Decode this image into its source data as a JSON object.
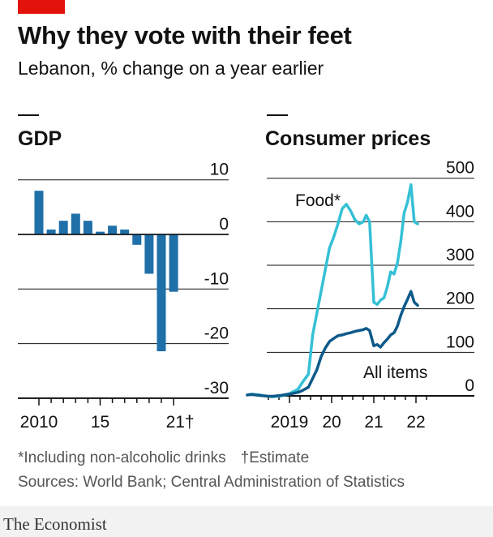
{
  "header": {
    "title": "Why they vote with their feet",
    "subtitle": "Lebanon, % change on a year earlier"
  },
  "colors": {
    "red_tag": "#e3120b",
    "gdp_bar": "#1f6fa9",
    "food_line": "#35c0d6",
    "all_items_line": "#0e5a8a",
    "grid": "#121212",
    "text": "#121212",
    "footnote": "#555555"
  },
  "chart_data": [
    {
      "type": "bar",
      "title": "GDP",
      "x": [
        2009,
        2010,
        2011,
        2012,
        2013,
        2014,
        2015,
        2016,
        2017,
        2018,
        2019,
        2020,
        2021
      ],
      "values": [
        null,
        8.0,
        0.9,
        2.5,
        3.8,
        2.5,
        0.5,
        1.6,
        0.9,
        -1.9,
        -7.2,
        -21.4,
        -10.5
      ],
      "ylim": [
        -30,
        10
      ],
      "y_ticks": [
        10,
        0,
        -10,
        -20,
        -30
      ],
      "y_tick_labels": [
        "10",
        "0",
        "-10",
        "-20",
        "-30"
      ],
      "x_tick_labels": [
        {
          "x": 2010,
          "label": "2010"
        },
        {
          "x": 2015,
          "label": "15"
        },
        {
          "x": 2021,
          "label": "21†"
        }
      ],
      "grid": true
    },
    {
      "type": "line",
      "title": "Consumer prices",
      "ylim": [
        0,
        500
      ],
      "y_ticks": [
        0,
        100,
        200,
        300,
        400,
        500
      ],
      "y_tick_labels": [
        "0",
        "100",
        "200",
        "300",
        "400",
        "500"
      ],
      "x_tick_labels": [
        {
          "x": 2019,
          "label": "2019"
        },
        {
          "x": 2020,
          "label": "20"
        },
        {
          "x": 2021,
          "label": "21"
        },
        {
          "x": 2022,
          "label": "22"
        }
      ],
      "grid": true,
      "series": [
        {
          "name": "Food*",
          "points": [
            [
              2018.0,
              2
            ],
            [
              2018.1,
              4
            ],
            [
              2018.2,
              3
            ],
            [
              2018.3,
              2
            ],
            [
              2018.4,
              0
            ],
            [
              2018.5,
              -1
            ],
            [
              2018.6,
              -2
            ],
            [
              2018.7,
              -1
            ],
            [
              2018.8,
              0
            ],
            [
              2018.9,
              2
            ],
            [
              2019.0,
              5
            ],
            [
              2019.1,
              10
            ],
            [
              2019.2,
              15
            ],
            [
              2019.3,
              30
            ],
            [
              2019.45,
              50
            ],
            [
              2019.55,
              140
            ],
            [
              2019.65,
              190
            ],
            [
              2019.75,
              240
            ],
            [
              2019.85,
              290
            ],
            [
              2019.95,
              340
            ],
            [
              2020.05,
              365
            ],
            [
              2020.15,
              395
            ],
            [
              2020.25,
              430
            ],
            [
              2020.35,
              440
            ],
            [
              2020.45,
              425
            ],
            [
              2020.55,
              405
            ],
            [
              2020.65,
              395
            ],
            [
              2020.75,
              400
            ],
            [
              2020.82,
              415
            ],
            [
              2020.9,
              400
            ],
            [
              2021.0,
              215
            ],
            [
              2021.08,
              210
            ],
            [
              2021.16,
              220
            ],
            [
              2021.24,
              225
            ],
            [
              2021.32,
              250
            ],
            [
              2021.4,
              285
            ],
            [
              2021.48,
              280
            ],
            [
              2021.56,
              305
            ],
            [
              2021.64,
              355
            ],
            [
              2021.72,
              420
            ],
            [
              2021.8,
              445
            ],
            [
              2021.88,
              485
            ],
            [
              2021.96,
              400
            ],
            [
              2022.04,
              395
            ]
          ]
        },
        {
          "name": "All items",
          "points": [
            [
              2018.0,
              2
            ],
            [
              2018.1,
              3
            ],
            [
              2018.2,
              2
            ],
            [
              2018.3,
              1
            ],
            [
              2018.4,
              0
            ],
            [
              2018.5,
              -1
            ],
            [
              2018.6,
              -1
            ],
            [
              2018.7,
              0
            ],
            [
              2018.8,
              1
            ],
            [
              2018.9,
              3
            ],
            [
              2019.0,
              4
            ],
            [
              2019.1,
              6
            ],
            [
              2019.2,
              8
            ],
            [
              2019.3,
              12
            ],
            [
              2019.45,
              20
            ],
            [
              2019.55,
              40
            ],
            [
              2019.65,
              60
            ],
            [
              2019.75,
              90
            ],
            [
              2019.85,
              110
            ],
            [
              2019.95,
              125
            ],
            [
              2020.05,
              132
            ],
            [
              2020.15,
              138
            ],
            [
              2020.25,
              140
            ],
            [
              2020.35,
              143
            ],
            [
              2020.45,
              145
            ],
            [
              2020.55,
              148
            ],
            [
              2020.65,
              150
            ],
            [
              2020.75,
              152
            ],
            [
              2020.82,
              155
            ],
            [
              2020.9,
              150
            ],
            [
              2021.0,
              115
            ],
            [
              2021.08,
              118
            ],
            [
              2021.16,
              112
            ],
            [
              2021.24,
              122
            ],
            [
              2021.32,
              130
            ],
            [
              2021.4,
              140
            ],
            [
              2021.48,
              145
            ],
            [
              2021.56,
              160
            ],
            [
              2021.64,
              185
            ],
            [
              2021.72,
              205
            ],
            [
              2021.8,
              222
            ],
            [
              2021.88,
              240
            ],
            [
              2021.96,
              215
            ],
            [
              2022.04,
              208
            ]
          ]
        }
      ]
    }
  ],
  "footnotes": {
    "note1": "*Including non-alcoholic drinks",
    "note2": "†Estimate",
    "sources": "Sources: World Bank; Central Administration of Statistics"
  },
  "brand": "The Economist"
}
